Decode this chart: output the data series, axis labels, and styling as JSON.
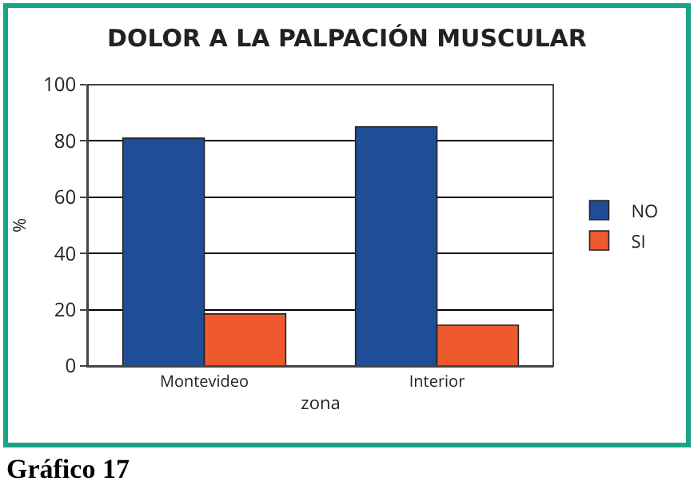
{
  "chart_data": {
    "type": "bar",
    "title": "DOLOR A LA PALPACIÓN MUSCULAR",
    "xlabel": "zona",
    "ylabel": "%",
    "categories": [
      "Montevideo",
      "Interior"
    ],
    "series": [
      {
        "name": "NO",
        "color": "#1f4e96",
        "values": [
          81,
          85
        ]
      },
      {
        "name": "SI",
        "color": "#ee5a2e",
        "values": [
          18.5,
          14.5
        ]
      }
    ],
    "ylim": [
      0,
      100
    ],
    "yticks": [
      0,
      20,
      40,
      60,
      80,
      100
    ],
    "grid": "y",
    "legend": "right",
    "annotations": [
      "Gráfico 17"
    ]
  }
}
